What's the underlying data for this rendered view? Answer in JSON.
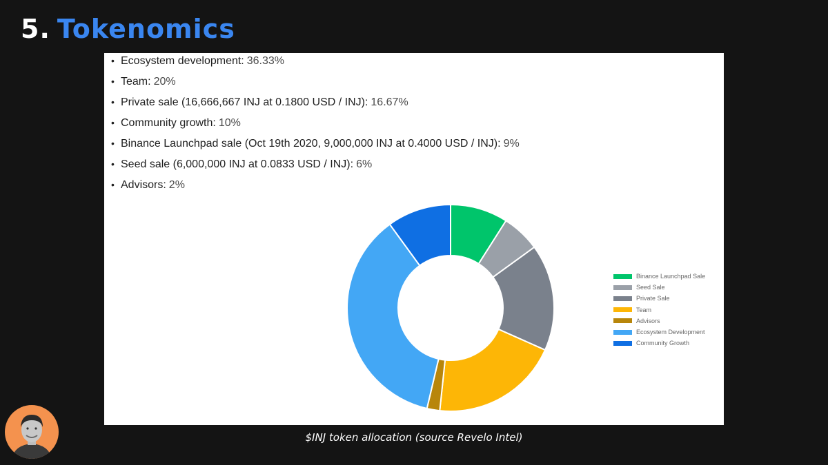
{
  "header": {
    "number": "5.",
    "title": "Tokenomics"
  },
  "allocation_list": [
    {
      "label": "Ecosystem development:",
      "value": "36.33%"
    },
    {
      "label": "Team:",
      "value": "20%"
    },
    {
      "label": "Private sale (16,666,667 INJ at 0.1800 USD / INJ):",
      "value": "16.67%"
    },
    {
      "label": "Community growth:",
      "value": "10%"
    },
    {
      "label": "Binance Launchpad sale (Oct 19th 2020, 9,000,000 INJ at 0.4000 USD / INJ):",
      "value": "9%"
    },
    {
      "label": "Seed sale (6,000,000 INJ at 0.0833 USD / INJ):",
      "value": "6%"
    },
    {
      "label": "Advisors:",
      "value": "2%"
    }
  ],
  "chart_data": {
    "type": "pie",
    "donut": true,
    "legend_position": "right",
    "slices": [
      {
        "label": "Binance Launchpad Sale",
        "value": 9,
        "color": "#00c56b"
      },
      {
        "label": "Seed Sale",
        "value": 6,
        "color": "#9aa0a8"
      },
      {
        "label": "Private Sale",
        "value": 16.67,
        "color": "#7a818c"
      },
      {
        "label": "Team",
        "value": 20,
        "color": "#fdb606"
      },
      {
        "label": "Advisors",
        "value": 2,
        "color": "#b8860b"
      },
      {
        "label": "Ecosystem Development",
        "value": 36.33,
        "color": "#43a7f5"
      },
      {
        "label": "Community Growth",
        "value": 10,
        "color": "#0f6fe3"
      }
    ]
  },
  "caption": "$INJ token allocation (source Revelo Intel)",
  "colors": {
    "background": "#141414",
    "title_accent": "#3a86f0",
    "avatar_bg": "#f4924e"
  }
}
